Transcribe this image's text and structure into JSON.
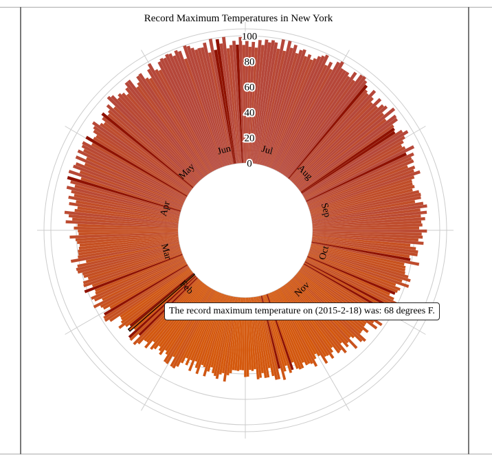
{
  "chart_data": {
    "type": "bar",
    "layout": "radial",
    "title": "Record Maximum Temperatures in New York",
    "months": [
      "Jul",
      "Aug",
      "Sep",
      "Oct",
      "Nov",
      "Dec",
      "Jan",
      "Feb",
      "Mar",
      "Apr",
      "May",
      "Jun"
    ],
    "radial_ticks": [
      "0",
      "20",
      "40",
      "60",
      "80",
      "100"
    ],
    "ylim": [
      0,
      100
    ],
    "angular_grid_lines": 12,
    "monthly_typical_record_max": [
      96,
      96,
      92,
      84,
      74,
      64,
      62,
      64,
      74,
      84,
      90,
      94
    ],
    "highlighted_days": [
      "2015-2-18"
    ],
    "colors": {
      "hot": "#9e1d12",
      "warm": "#b5473a",
      "cool": "#d4580c",
      "highlight": "#8f1100",
      "grid": "#cccccc"
    }
  },
  "tooltip": {
    "text": "The record maximum temperature on (2015-2-18) was: 68 degrees F."
  }
}
